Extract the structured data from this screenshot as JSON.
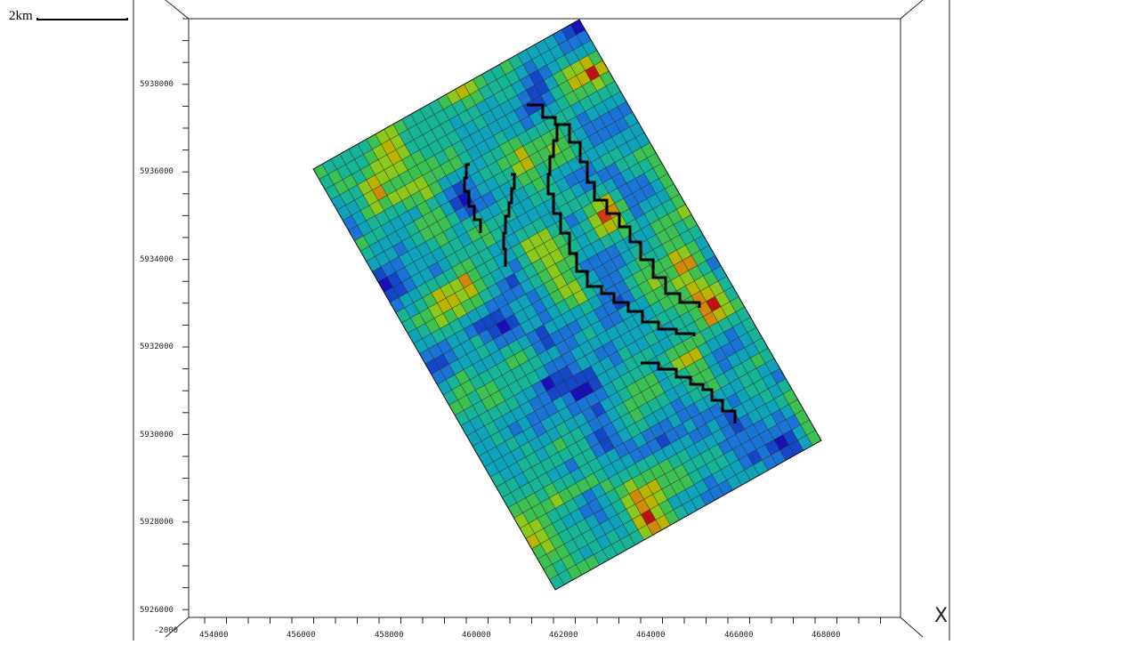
{
  "scale": {
    "label": "2km"
  },
  "axes": {
    "corner_label": "-2000",
    "axis_glyph": "X",
    "x_ticks": [
      "454000",
      "456000",
      "458000",
      "460000",
      "462000",
      "464000",
      "466000",
      "468000"
    ],
    "y_ticks": [
      "5938000",
      "5936000",
      "5934000",
      "5932000",
      "5930000",
      "5928000",
      "5926000"
    ]
  },
  "grid": {
    "palette": [
      "#1a10b8",
      "#1446c8",
      "#1a74d6",
      "#0fa3ba",
      "#18b496",
      "#3cc052",
      "#8cc81c",
      "#b8b400",
      "#d08a08",
      "#d23a10",
      "#c01010"
    ],
    "weights": [
      3,
      6,
      9,
      9,
      8,
      9,
      6,
      4,
      2,
      1,
      1
    ],
    "line_color": "#2a2a2a",
    "faults": 5
  }
}
